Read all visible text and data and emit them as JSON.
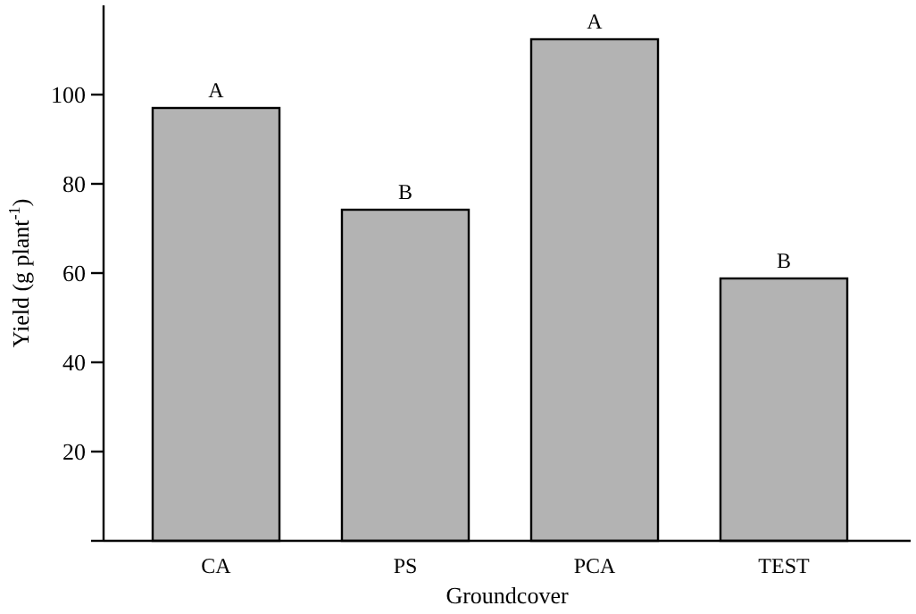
{
  "chart_data": {
    "type": "bar",
    "xlabel": "Groundcover",
    "ylabel": "Yield (g plant$^{-1}$)",
    "categories": [
      "CA",
      "PS",
      "PCA",
      "TEST"
    ],
    "values": [
      97,
      74.2,
      112.4,
      58.8
    ],
    "color": "#b3b3b3",
    "ylim": [
      0,
      120
    ],
    "yticks": [
      {
        "value": 0,
        "label": null
      },
      20,
      40,
      60,
      80,
      100
    ],
    "grid": false,
    "annotations": [
      {
        "text": "A",
        "x": "CA",
        "y": 97
      },
      {
        "text": "B",
        "x": "PS",
        "y": 74.2
      },
      {
        "text": "A",
        "x": "PCA",
        "y": 112.4
      },
      {
        "text": "B",
        "x": "TEST",
        "y": 58.8
      }
    ]
  }
}
